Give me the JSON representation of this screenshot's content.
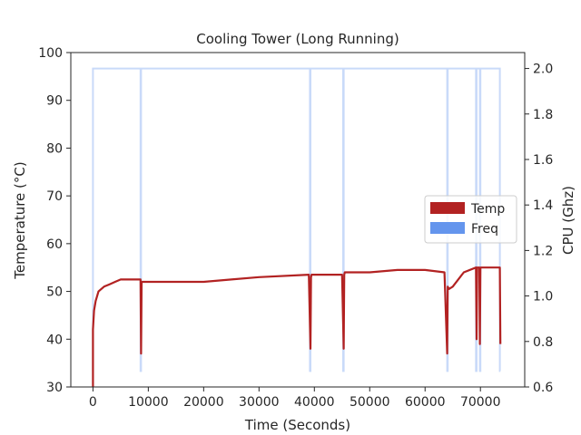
{
  "chart_data": {
    "type": "line",
    "title": "Cooling Tower (Long Running)",
    "xlabel": "Time (Seconds)",
    "ylabel": "Temperature (°C)",
    "ylabel_right": "CPU (Ghz)",
    "xlim": [
      -4000,
      78000
    ],
    "ylim": [
      30,
      100
    ],
    "ylim_right": [
      0.6,
      2.07
    ],
    "x_ticks": [
      0,
      10000,
      20000,
      30000,
      40000,
      50000,
      60000,
      70000
    ],
    "y_ticks": [
      30,
      40,
      50,
      60,
      70,
      80,
      90,
      100
    ],
    "y_ticks_right": [
      0.6,
      0.8,
      1.0,
      1.2,
      1.4,
      1.6,
      1.8,
      2.0
    ],
    "y_tick_labels_right": [
      "0.6",
      "0.8",
      "1.0",
      "1.2",
      "1.4",
      "1.6",
      "1.8",
      "2.0"
    ],
    "legend": [
      {
        "name": "Temp",
        "color": "#b22222"
      },
      {
        "name": "Freq",
        "color": "#6495ed"
      }
    ],
    "legend_position": "center-right",
    "series": [
      {
        "name": "Temp",
        "axis": "left",
        "color": "#b22222",
        "x": [
          0,
          0,
          200,
          500,
          1000,
          2000,
          3000,
          4000,
          5000,
          6000,
          8600,
          8700,
          8800,
          10000,
          20000,
          25000,
          30000,
          39000,
          39300,
          39400,
          39500,
          45000,
          45300,
          45400,
          45500,
          50000,
          55000,
          60000,
          63500,
          64000,
          64100,
          64300,
          65000,
          67000,
          69200,
          69300,
          69400,
          69800,
          69900,
          70000,
          72000,
          73500,
          73600
        ],
        "values": [
          30,
          42,
          46,
          48,
          50,
          51,
          51.5,
          52,
          52.5,
          52.5,
          52.5,
          37,
          52,
          52,
          52,
          52.5,
          53,
          53.5,
          38,
          53,
          53.5,
          53.5,
          38,
          53.5,
          54,
          54,
          54.5,
          54.5,
          54,
          37,
          51,
          50.5,
          51,
          54,
          55,
          40,
          55,
          55,
          39,
          55,
          55,
          55,
          39
        ]
      },
      {
        "name": "Freq",
        "axis": "right",
        "color": "#6495ed",
        "x": [
          0,
          0,
          8600,
          8600,
          8700,
          8700,
          39200,
          39200,
          39300,
          39300,
          45200,
          45200,
          45300,
          45300,
          64000,
          64000,
          64100,
          64100,
          69200,
          69200,
          69300,
          69300,
          69900,
          69900,
          70000,
          70000,
          73500,
          73500,
          73600
        ],
        "values": [
          0.67,
          2.0,
          2.0,
          0.67,
          0.67,
          2.0,
          2.0,
          0.67,
          0.67,
          2.0,
          2.0,
          0.67,
          0.67,
          2.0,
          2.0,
          0.67,
          0.67,
          2.0,
          2.0,
          0.67,
          0.67,
          2.0,
          2.0,
          0.67,
          0.67,
          2.0,
          2.0,
          0.67,
          0.67
        ]
      }
    ]
  }
}
